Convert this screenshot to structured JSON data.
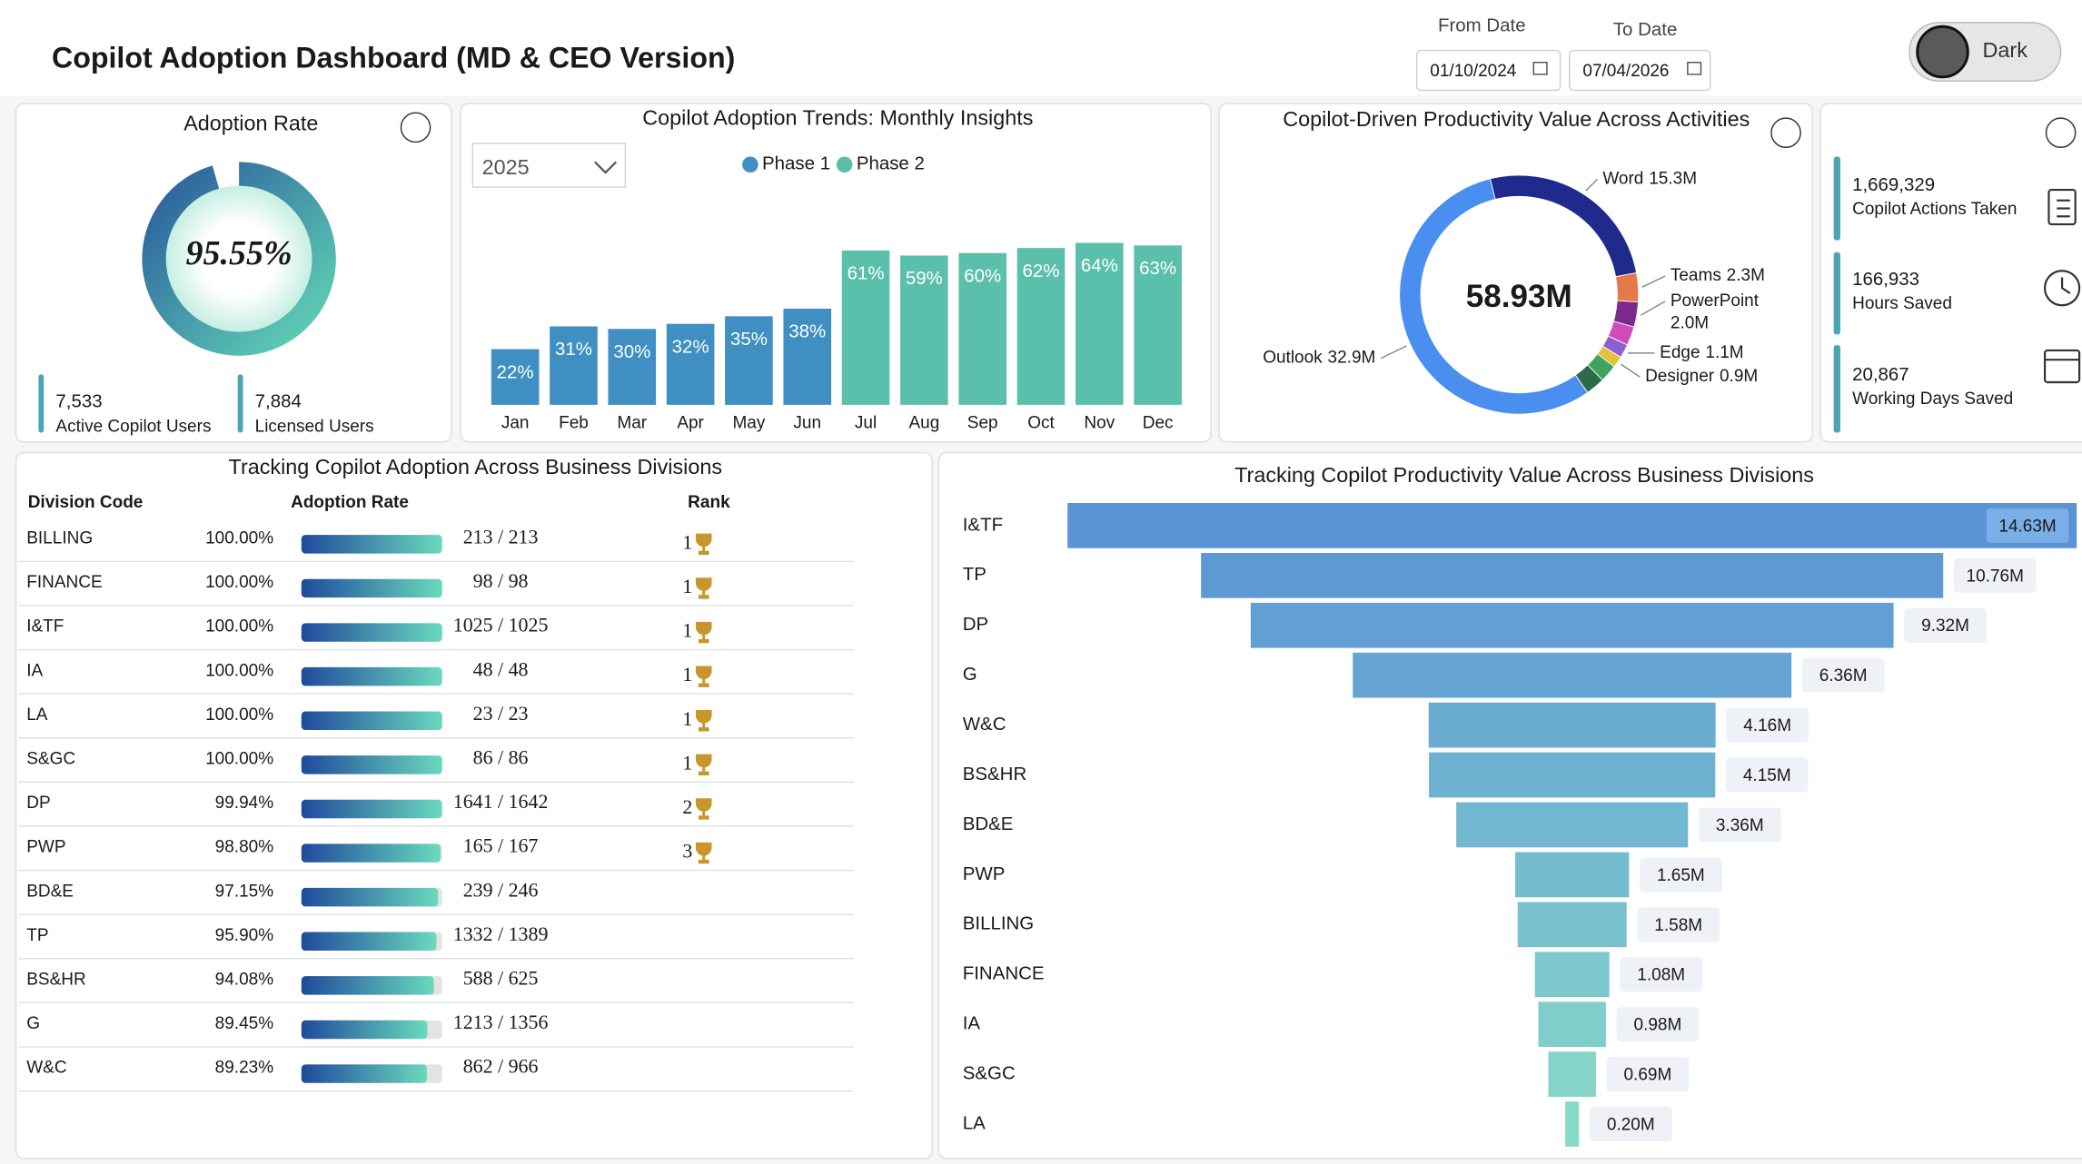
{
  "header": {
    "title": "Copilot Adoption Dashboard (MD & CEO Version)",
    "from_label": "From Date",
    "from_date": "01/10/2024",
    "to_label": "To Date",
    "to_date": "07/04/2026",
    "theme_toggle": "Dark"
  },
  "chart_data": [
    {
      "type": "gauge",
      "title": "Adoption Rate",
      "values": [
        95.55
      ],
      "value_labels": [
        "95.55%"
      ],
      "ylim": [
        0,
        100
      ],
      "color_start": "#62d6b6",
      "color_end": "#2a5b9c",
      "stats": [
        {
          "value": "7,533",
          "label": "Active Copilot Users"
        },
        {
          "value": "7,884",
          "label": "Licensed Users"
        }
      ]
    },
    {
      "type": "bar",
      "title": "Copilot Adoption Trends: Monthly Insights",
      "filter": "2025",
      "categories": [
        "Jan",
        "Feb",
        "Mar",
        "Apr",
        "May",
        "Jun",
        "Jul",
        "Aug",
        "Sep",
        "Oct",
        "Nov",
        "Dec"
      ],
      "series": [
        {
          "name": "Phase 1",
          "color": "#3f8fc2",
          "values": [
            22,
            31,
            30,
            32,
            35,
            38,
            null,
            null,
            null,
            null,
            null,
            null
          ],
          "value_labels": [
            "22%",
            "31%",
            "30%",
            "32%",
            "35%",
            "38%",
            null,
            null,
            null,
            null,
            null,
            null
          ]
        },
        {
          "name": "Phase 2",
          "color": "#5bc0ab",
          "values": [
            null,
            null,
            null,
            null,
            null,
            null,
            61,
            59,
            60,
            62,
            64,
            63
          ],
          "value_labels": [
            null,
            null,
            null,
            null,
            null,
            null,
            "61%",
            "59%",
            "60%",
            "62%",
            "64%",
            "63%"
          ]
        }
      ]
    },
    {
      "type": "donut",
      "title": "Copilot-Driven Productivity Value Across Activities",
      "center_label": "58.93M",
      "categories": [
        "Word",
        "Teams",
        "PowerPoint",
        null,
        "Edge",
        "Designer",
        null,
        null,
        "Outlook"
      ],
      "values": [
        15.3,
        2.3,
        2.0,
        1.5,
        1.1,
        0.9,
        1.4,
        1.53,
        32.9
      ],
      "value_labels": [
        "15.3M",
        "2.3M",
        "2.0M",
        null,
        "1.1M",
        "0.9M",
        null,
        null,
        "32.9M"
      ],
      "colors": [
        "#1f2a8c",
        "#e5794a",
        "#7b2a8c",
        "#d04ab8",
        "#8b5fd0",
        "#e5c13a",
        "#3fa35f",
        "#2b6b4a",
        "#4a8ff0"
      ]
    },
    {
      "type": "funnel",
      "title": "Tracking Copilot Productivity Value Across Business Divisions",
      "categories": [
        "I&TF",
        "TP",
        "DP",
        "G",
        "W&C",
        "BS&HR",
        "BD&E",
        "PWP",
        "BILLING",
        "FINANCE",
        "IA",
        "S&GC",
        "LA"
      ],
      "values": [
        14.63,
        10.76,
        9.32,
        6.36,
        4.16,
        4.15,
        3.36,
        1.65,
        1.58,
        1.08,
        0.98,
        0.69,
        0.2
      ],
      "value_labels": [
        "14.63M",
        "10.76M",
        "9.32M",
        "6.36M",
        "4.16M",
        "4.15M",
        "3.36M",
        "1.65M",
        "1.58M",
        "1.08M",
        "0.98M",
        "0.69M",
        "0.20M"
      ],
      "color_start": "#5a93d6",
      "color_end": "#88dac8"
    }
  ],
  "kpis": [
    {
      "value": "1,669,329",
      "label": "Copilot Actions Taken"
    },
    {
      "value": "166,933",
      "label": "Hours Saved"
    },
    {
      "value": "20,867",
      "label": "Working Days Saved"
    }
  ],
  "table": {
    "title": "Tracking Copilot Adoption Across Business Divisions",
    "columns": [
      "Division Code",
      "Adoption Rate",
      "Rank"
    ],
    "xlim": [
      0,
      100
    ],
    "bar_start": "#1f4a9c",
    "bar_end": "#6ad9bd",
    "rows": [
      {
        "division": "BILLING",
        "rate": 100.0,
        "rate_label": "100.00%",
        "users": "213 / 213",
        "rank": 1
      },
      {
        "division": "FINANCE",
        "rate": 100.0,
        "rate_label": "100.00%",
        "users": "98 / 98",
        "rank": 1
      },
      {
        "division": "I&TF",
        "rate": 100.0,
        "rate_label": "100.00%",
        "users": "1025 / 1025",
        "rank": 1
      },
      {
        "division": "IA",
        "rate": 100.0,
        "rate_label": "100.00%",
        "users": "48 / 48",
        "rank": 1
      },
      {
        "division": "LA",
        "rate": 100.0,
        "rate_label": "100.00%",
        "users": "23 / 23",
        "rank": 1
      },
      {
        "division": "S&GC",
        "rate": 100.0,
        "rate_label": "100.00%",
        "users": "86 / 86",
        "rank": 1
      },
      {
        "division": "DP",
        "rate": 99.94,
        "rate_label": "99.94%",
        "users": "1641 / 1642",
        "rank": 2
      },
      {
        "division": "PWP",
        "rate": 98.8,
        "rate_label": "98.80%",
        "users": "165 / 167",
        "rank": 3
      },
      {
        "division": "BD&E",
        "rate": 97.15,
        "rate_label": "97.15%",
        "users": "239 / 246",
        "rank": null
      },
      {
        "division": "TP",
        "rate": 95.9,
        "rate_label": "95.90%",
        "users": "1332 / 1389",
        "rank": null
      },
      {
        "division": "BS&HR",
        "rate": 94.08,
        "rate_label": "94.08%",
        "users": "588 / 625",
        "rank": null
      },
      {
        "division": "G",
        "rate": 89.45,
        "rate_label": "89.45%",
        "users": "1213 / 1356",
        "rank": null
      },
      {
        "division": "W&C",
        "rate": 89.23,
        "rate_label": "89.23%",
        "users": "862 / 966",
        "rank": null
      }
    ]
  }
}
